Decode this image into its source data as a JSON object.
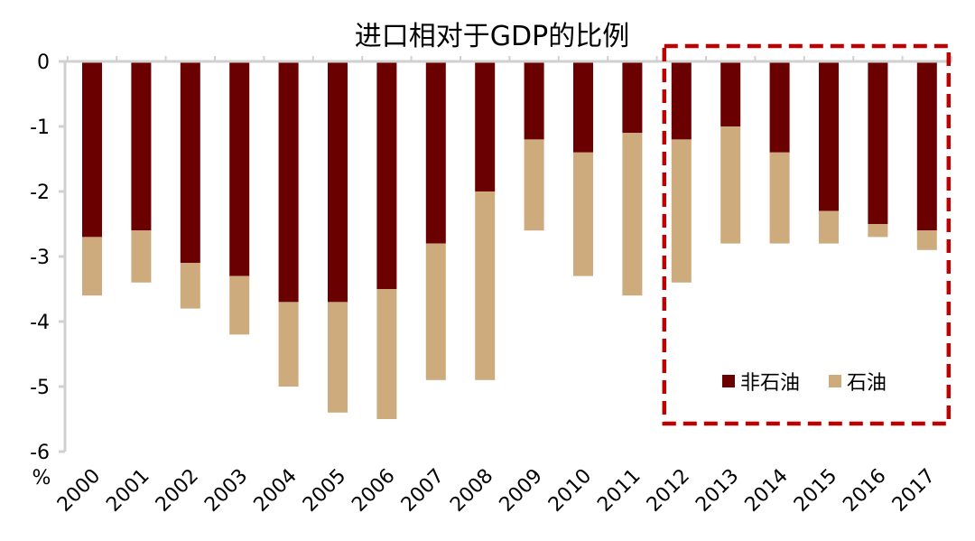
{
  "chart_data": {
    "type": "bar",
    "stacked": true,
    "title": "进口相对于GDP的比例",
    "ylabel": "%",
    "xlabel": "",
    "ylim": [
      -6,
      0
    ],
    "yticks": [
      "0",
      "-1",
      "-2",
      "-3",
      "-4",
      "-5",
      "-6"
    ],
    "grid": false,
    "legend_position": "bottom-right inside highlighted box",
    "categories": [
      "2000",
      "2001",
      "2002",
      "2003",
      "2004",
      "2005",
      "2006",
      "2007",
      "2008",
      "2009",
      "2010",
      "2011",
      "2012",
      "2013",
      "2014",
      "2015",
      "2016",
      "2017"
    ],
    "series": [
      {
        "name": "非石油",
        "color": "#6b0000",
        "values": [
          -2.7,
          -2.6,
          -3.1,
          -3.3,
          -3.7,
          -3.7,
          -3.5,
          -2.8,
          -2.0,
          -1.2,
          -1.4,
          -1.1,
          -1.2,
          -1.0,
          -1.4,
          -2.3,
          -2.5,
          -2.6
        ]
      },
      {
        "name": "石油",
        "color": "#cdab7d",
        "values": [
          -0.9,
          -0.8,
          -0.7,
          -0.9,
          -1.3,
          -1.7,
          -2.0,
          -2.1,
          -2.9,
          -1.4,
          -1.9,
          -2.5,
          -2.2,
          -1.8,
          -1.4,
          -0.5,
          -0.2,
          -0.3
        ]
      }
    ],
    "highlight": {
      "from": "2012",
      "to": "2017",
      "style": "dashed",
      "color": "#c00000"
    }
  }
}
